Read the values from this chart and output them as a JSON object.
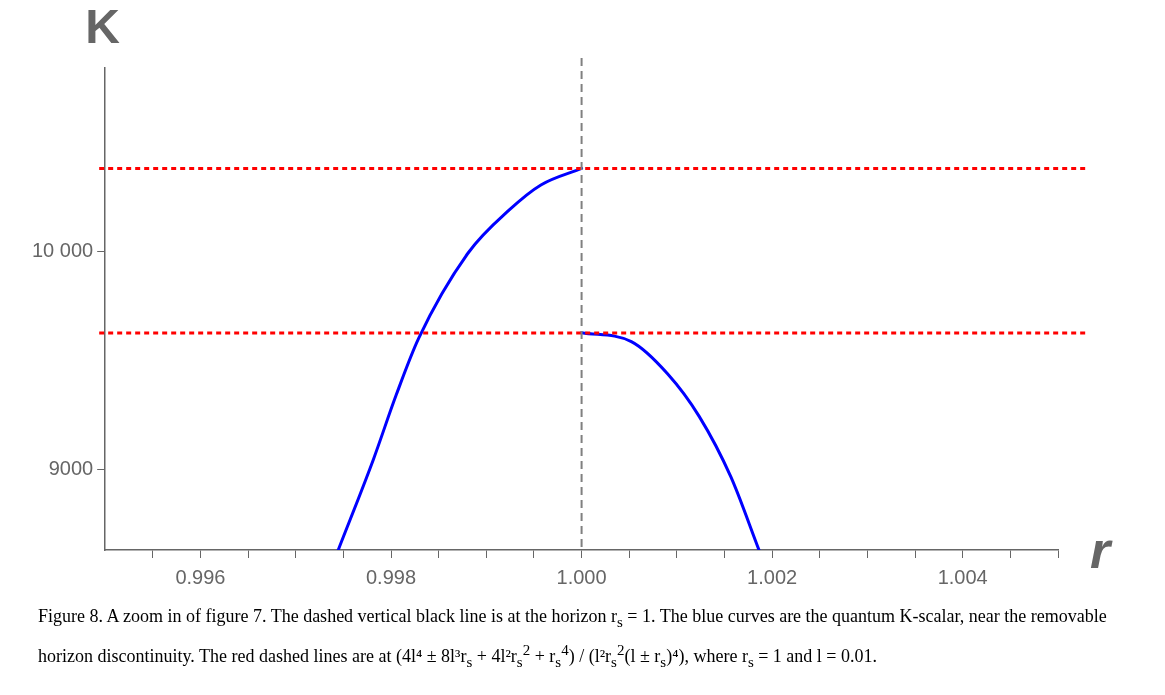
{
  "chart_data": {
    "type": "line",
    "xlabel": "r",
    "ylabel": "K",
    "xlim": [
      0.995,
      1.005
    ],
    "xticks": [
      {
        "value": 0.9955,
        "label": null
      },
      {
        "value": 0.996,
        "label": "0.996"
      },
      {
        "value": 0.9965,
        "label": null
      },
      {
        "value": 0.997,
        "label": null
      },
      {
        "value": 0.9975,
        "label": null
      },
      {
        "value": 0.998,
        "label": "0.998"
      },
      {
        "value": 0.9985,
        "label": null
      },
      {
        "value": 0.999,
        "label": null
      },
      {
        "value": 0.9995,
        "label": null
      },
      {
        "value": 1.0,
        "label": "1.000"
      },
      {
        "value": 1.0005,
        "label": null
      },
      {
        "value": 1.001,
        "label": null
      },
      {
        "value": 1.0015,
        "label": null
      },
      {
        "value": 1.002,
        "label": "1.002"
      },
      {
        "value": 1.0025,
        "label": null
      },
      {
        "value": 1.003,
        "label": null
      },
      {
        "value": 1.0035,
        "label": null
      },
      {
        "value": 1.004,
        "label": "1.004"
      },
      {
        "value": 1.0045,
        "label": null
      },
      {
        "value": 1.005,
        "label": null
      }
    ],
    "ylim": [
      8628,
      10846
    ],
    "yticks": [
      9000,
      {
        "value": 10000,
        "label": "10 000"
      }
    ],
    "grid": false,
    "legend": false,
    "marker": "none",
    "line_style": "solid",
    "series": [
      {
        "color": "#0000ff",
        "x": [
          0.997446,
          0.997816,
          0.998054,
          0.998291,
          0.998813,
          0.999241,
          0.999573,
          1.0
        ],
        "values": [
          8628,
          9046,
          9341,
          9603,
          9997,
          10193,
          10308,
          10384
        ]
      },
      {
        "color": "#0000ff",
        "x": [
          1.0,
          1.000522,
          1.000902,
          1.001234,
          1.001567,
          1.001862
        ],
        "values": [
          9628,
          9587,
          9439,
          9243,
          8964,
          8628
        ]
      }
    ],
    "ref_lines": [
      {
        "axis": "y",
        "value": 10384,
        "color": "#ff0000",
        "line_style": "dotted"
      },
      {
        "axis": "y",
        "value": 9626,
        "color": "#ff0000",
        "line_style": "dotted"
      },
      {
        "axis": "x",
        "value": 1.0,
        "color": "#808080",
        "line_style": "dashed"
      }
    ],
    "annotations": [
      "Figure 8. A zoom in of figure 7. The dashed vertical black line is at the horizon r$_{s}$ = 1. The blue curves are the quantum K-scalar, near the removable horizon discontinuity. The red dashed lines are at (4l⁴ ± 8l³r$_{s}$ + 4l²r$_{s}$$^{2}$ + r$_{s}$$^{4}$) / (l²r$_{s}$$^{2}$(l ± r$_{s}$)⁴), where r$_{s}$ = 1 and l = 0.01."
    ]
  }
}
